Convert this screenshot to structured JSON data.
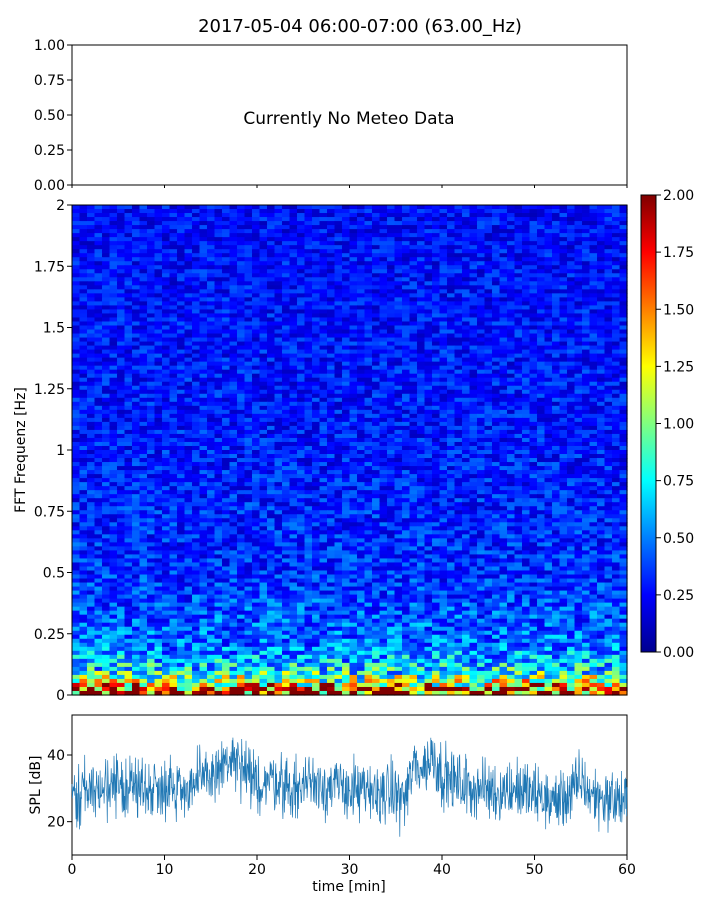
{
  "figure": {
    "title": "2017-05-04 06:00-07:00 (63.00_Hz)"
  },
  "chart_data": [
    {
      "panel": "meteo",
      "type": "line",
      "annotation": "Currently No Meteo Data",
      "ylim": [
        0,
        1
      ],
      "y_ticks": [
        "0.00",
        "0.25",
        "0.50",
        "0.75",
        "1.00"
      ],
      "xlim": [
        0,
        60
      ],
      "series": []
    },
    {
      "panel": "spectrogram",
      "type": "heatmap",
      "ylabel": "FFT Frequenz [Hz]",
      "xlim": [
        0,
        60
      ],
      "ylim": [
        0,
        2
      ],
      "y_ticks": [
        "0",
        "0.25",
        "0.5",
        "0.75",
        "1",
        "1.25",
        "1.5",
        "1.75",
        "2"
      ],
      "colormap": "jet",
      "colorbar": {
        "range": [
          0,
          2
        ],
        "ticks": [
          "0.00",
          "0.25",
          "0.50",
          "0.75",
          "1.00",
          "1.25",
          "1.50",
          "1.75",
          "2.00"
        ]
      },
      "frequency_profile": [
        {
          "f_hz": 0.0,
          "value": 2.0
        },
        {
          "f_hz": 0.02,
          "value": 1.7
        },
        {
          "f_hz": 0.05,
          "value": 1.1
        },
        {
          "f_hz": 0.1,
          "value": 0.7
        },
        {
          "f_hz": 0.2,
          "value": 0.45
        },
        {
          "f_hz": 0.5,
          "value": 0.32
        },
        {
          "f_hz": 1.0,
          "value": 0.28
        },
        {
          "f_hz": 2.0,
          "value": 0.25
        }
      ]
    },
    {
      "panel": "spl",
      "type": "line",
      "xlabel": "time [min]",
      "ylabel": "SPL [dB]",
      "xlim": [
        0,
        60
      ],
      "ylim": [
        10,
        52
      ],
      "x_ticks": [
        "0",
        "10",
        "20",
        "30",
        "40",
        "50",
        "60"
      ],
      "y_ticks": [
        "20",
        "40"
      ],
      "color": "#1f77b4",
      "series": [
        {
          "x": [
            0,
            2,
            4,
            6,
            8,
            10,
            12,
            14,
            15,
            16,
            17,
            18,
            19,
            20,
            22,
            24,
            26,
            28,
            30,
            32,
            34,
            36,
            37,
            38,
            39,
            40,
            42,
            44,
            46,
            48,
            50,
            52,
            54,
            55,
            56,
            58,
            60
          ],
          "y": [
            28,
            30,
            29,
            31,
            30,
            31,
            30,
            32,
            34,
            36,
            38,
            37,
            33,
            31,
            33,
            29,
            33,
            30,
            30,
            28,
            29,
            27,
            37,
            36,
            40,
            34,
            31,
            30,
            29,
            30,
            28,
            26,
            28,
            33,
            28,
            27,
            26
          ]
        }
      ]
    }
  ]
}
